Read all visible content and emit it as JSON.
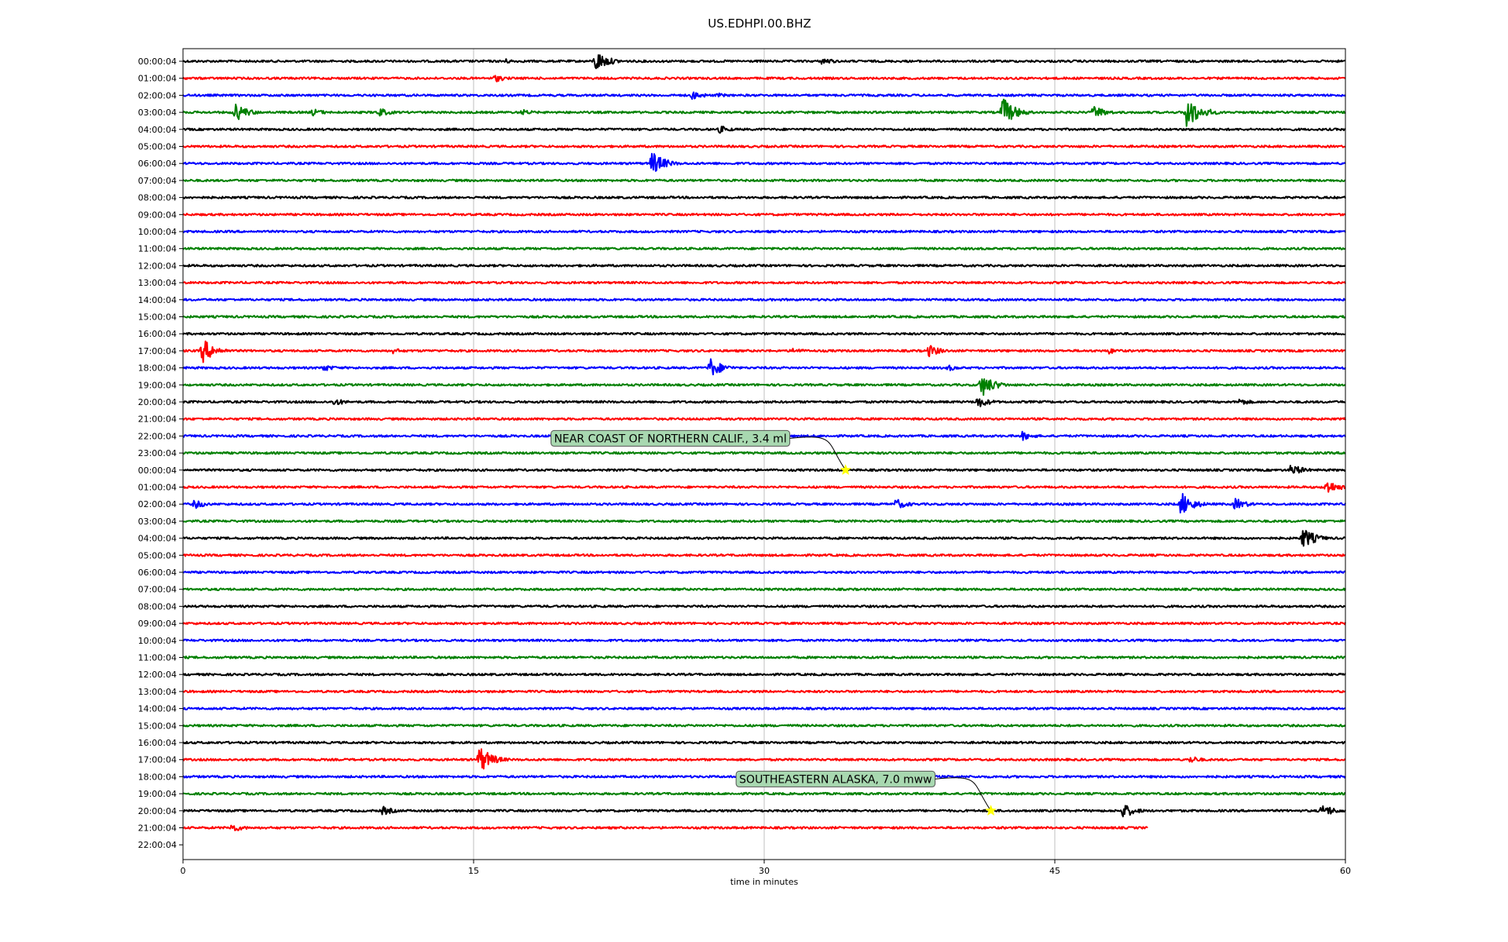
{
  "chart_data": {
    "type": "line",
    "title": "US.EDHPI.00.BHZ",
    "xlabel": "time in minutes",
    "xlim": [
      0,
      60
    ],
    "x_ticks": [
      "0",
      "15",
      "30",
      "45",
      "60"
    ],
    "grid": "vertical at 15-minute ticks",
    "row_colors": [
      "#000000",
      "#ff0000",
      "#0000ff",
      "#008000"
    ],
    "y_tick_labels": [
      "00:00:04",
      "01:00:04",
      "02:00:04",
      "03:00:04",
      "04:00:04",
      "05:00:04",
      "06:00:04",
      "07:00:04",
      "08:00:04",
      "09:00:04",
      "10:00:04",
      "11:00:04",
      "12:00:04",
      "13:00:04",
      "14:00:04",
      "15:00:04",
      "16:00:04",
      "17:00:04",
      "18:00:04",
      "19:00:04",
      "20:00:04",
      "21:00:04",
      "22:00:04",
      "23:00:04",
      "00:00:04",
      "01:00:04",
      "02:00:04",
      "03:00:04",
      "04:00:04",
      "05:00:04",
      "06:00:04",
      "07:00:04",
      "08:00:04",
      "09:00:04",
      "10:00:04",
      "11:00:04",
      "12:00:04",
      "13:00:04",
      "14:00:04",
      "15:00:04",
      "16:00:04",
      "17:00:04",
      "18:00:04",
      "19:00:04",
      "20:00:04",
      "21:00:04",
      "22:00:04"
    ],
    "last_trace_end_minutes": 49.8,
    "bursts": [
      {
        "row": 0,
        "minute": 21.3,
        "amplitude": 14
      },
      {
        "row": 0,
        "minute": 16.5,
        "amplitude": 4
      },
      {
        "row": 0,
        "minute": 33.0,
        "amplitude": 5
      },
      {
        "row": 1,
        "minute": 16.1,
        "amplitude": 5
      },
      {
        "row": 2,
        "minute": 26.3,
        "amplitude": 6
      },
      {
        "row": 2,
        "minute": 27.6,
        "amplitude": 3
      },
      {
        "row": 3,
        "minute": 2.7,
        "amplitude": 12
      },
      {
        "row": 3,
        "minute": 6.7,
        "amplitude": 5
      },
      {
        "row": 3,
        "minute": 10.1,
        "amplitude": 6
      },
      {
        "row": 3,
        "minute": 17.5,
        "amplitude": 4
      },
      {
        "row": 3,
        "minute": 42.3,
        "amplitude": 20
      },
      {
        "row": 3,
        "minute": 47.0,
        "amplitude": 9
      },
      {
        "row": 3,
        "minute": 51.8,
        "amplitude": 22
      },
      {
        "row": 3,
        "minute": 53.0,
        "amplitude": 4
      },
      {
        "row": 4,
        "minute": 27.7,
        "amplitude": 5
      },
      {
        "row": 6,
        "minute": 24.2,
        "amplitude": 16
      },
      {
        "row": 17,
        "minute": 1.0,
        "amplitude": 16
      },
      {
        "row": 17,
        "minute": 10.8,
        "amplitude": 4
      },
      {
        "row": 17,
        "minute": 31.5,
        "amplitude": 4
      },
      {
        "row": 17,
        "minute": 38.5,
        "amplitude": 8
      },
      {
        "row": 17,
        "minute": 47.8,
        "amplitude": 4
      },
      {
        "row": 18,
        "minute": 7.2,
        "amplitude": 5
      },
      {
        "row": 18,
        "minute": 27.2,
        "amplitude": 13
      },
      {
        "row": 18,
        "minute": 39.5,
        "amplitude": 4
      },
      {
        "row": 19,
        "minute": 41.2,
        "amplitude": 16
      },
      {
        "row": 20,
        "minute": 7.8,
        "amplitude": 5
      },
      {
        "row": 20,
        "minute": 41.0,
        "amplitude": 8
      },
      {
        "row": 20,
        "minute": 54.5,
        "amplitude": 5
      },
      {
        "row": 22,
        "minute": 43.3,
        "amplitude": 6
      },
      {
        "row": 24,
        "minute": 57.2,
        "amplitude": 8
      },
      {
        "row": 25,
        "minute": 59.0,
        "amplitude": 10
      },
      {
        "row": 26,
        "minute": 0.6,
        "amplitude": 6
      },
      {
        "row": 26,
        "minute": 36.8,
        "amplitude": 7
      },
      {
        "row": 26,
        "minute": 51.5,
        "amplitude": 16
      },
      {
        "row": 26,
        "minute": 54.3,
        "amplitude": 8
      },
      {
        "row": 28,
        "minute": 57.8,
        "amplitude": 14
      },
      {
        "row": 41,
        "minute": 15.3,
        "amplitude": 18
      },
      {
        "row": 41,
        "minute": 52.0,
        "amplitude": 5
      },
      {
        "row": 44,
        "minute": 10.3,
        "amplitude": 6
      },
      {
        "row": 44,
        "minute": 48.5,
        "amplitude": 10
      },
      {
        "row": 44,
        "minute": 58.8,
        "amplitude": 9
      },
      {
        "row": 45,
        "minute": 2.5,
        "amplitude": 6
      }
    ],
    "annotations": [
      {
        "text": "NEAR COAST OF NORTHERN CALIF., 3.4 ml",
        "row": 24,
        "minute": 34.2,
        "star_color": "#ffff00"
      },
      {
        "text": "SOUTHEASTERN ALASKA, 7.0 mww",
        "row": 44,
        "minute": 41.7,
        "star_color": "#ffff00"
      }
    ]
  }
}
